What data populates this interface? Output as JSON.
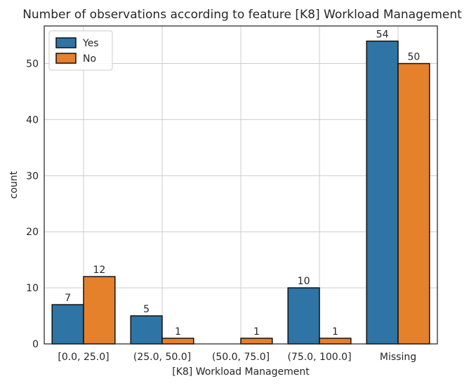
{
  "chart_data": {
    "type": "bar",
    "title": "Number of observations according to feature [K8] Workload Management",
    "xlabel": "[K8] Workload Management",
    "ylabel": "count",
    "categories": [
      "[0.0, 25.0]",
      "(25.0, 50.0]",
      "(50.0, 75.0]",
      "(75.0, 100.0]",
      "Missing"
    ],
    "series": [
      {
        "name": "Yes",
        "color": "#2e74a5",
        "values": [
          7,
          5,
          null,
          10,
          54
        ]
      },
      {
        "name": "No",
        "color": "#e5802b",
        "values": [
          12,
          1,
          1,
          1,
          50
        ]
      }
    ],
    "ylim": [
      0,
      56.7
    ],
    "yticks": [
      0,
      10,
      20,
      30,
      40,
      50
    ],
    "grid": true,
    "legend_position": "top-left",
    "bar_labels": true
  }
}
